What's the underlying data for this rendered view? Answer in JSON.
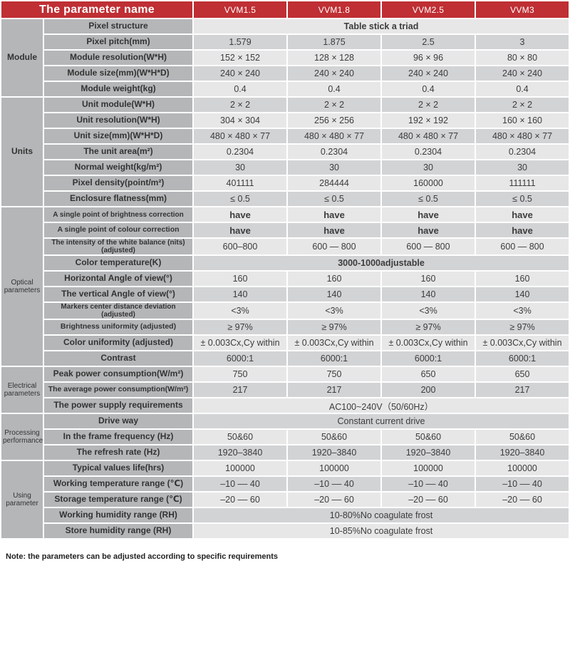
{
  "colors": {
    "header_red": "#bf2f34",
    "label_gray": "#b4b6b8",
    "row_light": "#e7e7e8",
    "row_mid": "#d2d3d5",
    "text_dark": "#333333"
  },
  "header": {
    "param_col_label": "The parameter name",
    "columns": [
      "VVM1.5",
      "VVM1.8",
      "VVM2.5",
      "VVM3"
    ]
  },
  "groups": [
    {
      "name": "Module",
      "rows": [
        {
          "label": "Pixel structure",
          "span": "Table stick a triad",
          "span_bold": true
        },
        {
          "label": "Pixel pitch(mm)",
          "values": [
            "1.579",
            "1.875",
            "2.5",
            "3"
          ]
        },
        {
          "label": "Module resolution(W*H)",
          "values": [
            "152 × 152",
            "128 × 128",
            "96 × 96",
            "80 × 80"
          ]
        },
        {
          "label": "Module size(mm)(W*H*D)",
          "values": [
            "240 × 240",
            "240 × 240",
            "240 × 240",
            "240 × 240"
          ]
        },
        {
          "label": "Module weight(kg)",
          "values": [
            "0.4",
            "0.4",
            "0.4",
            "0.4"
          ]
        }
      ]
    },
    {
      "name": "Units",
      "rows": [
        {
          "label": "Unit module(W*H)",
          "values": [
            "2 × 2",
            "2 × 2",
            "2 × 2",
            "2 × 2"
          ]
        },
        {
          "label": "Unit resolution(W*H)",
          "values": [
            "304 × 304",
            "256 × 256",
            "192 × 192",
            "160 × 160"
          ]
        },
        {
          "label": "Unit size(mm)(W*H*D)",
          "values": [
            "480 × 480 × 77",
            "480 × 480 × 77",
            "480 × 480 × 77",
            "480 × 480 × 77"
          ]
        },
        {
          "label": "The unit area(m²)",
          "values": [
            "0.2304",
            "0.2304",
            "0.2304",
            "0.2304"
          ]
        },
        {
          "label": "Normal weight(kg/m²)",
          "values": [
            "30",
            "30",
            "30",
            "30"
          ]
        },
        {
          "label": "Pixel density(point/m²)",
          "values": [
            "401111",
            "284444",
            "160000",
            "111111"
          ]
        },
        {
          "label": "Enclosure flatness(mm)",
          "values": [
            "≤ 0.5",
            "≤ 0.5",
            "≤ 0.5",
            "≤ 0.5"
          ]
        }
      ]
    },
    {
      "name": "Optical parameters",
      "rows": [
        {
          "label": "A single point of brightness correction",
          "values": [
            "have",
            "have",
            "have",
            "have"
          ]
        },
        {
          "label": "A single point of colour correction",
          "values": [
            "have",
            "have",
            "have",
            "have"
          ]
        },
        {
          "label": "The intensity of the white balance (nits) (adjusted)",
          "values": [
            "600–800",
            "600 — 800",
            "600 — 800",
            "600 — 800"
          ]
        },
        {
          "label": "Color temperature(K)",
          "span": "3000-1000adjustable",
          "span_bold": true
        },
        {
          "label": "Horizontal Angle of view(°)",
          "values": [
            "160",
            "160",
            "160",
            "160"
          ]
        },
        {
          "label": "The vertical Angle of view(°)",
          "values": [
            "140",
            "140",
            "140",
            "140"
          ]
        },
        {
          "label": "Markers center distance deviation (adjusted)",
          "values": [
            "<3%",
            "<3%",
            "<3%",
            "<3%"
          ]
        },
        {
          "label": "Brightness uniformity (adjusted)",
          "values": [
            "≥ 97%",
            "≥ 97%",
            "≥ 97%",
            "≥ 97%"
          ]
        },
        {
          "label": "Color uniformity (adjusted)",
          "values": [
            "± 0.003Cx,Cy  within",
            "± 0.003Cx,Cy within",
            "± 0.003Cx,Cy within",
            "± 0.003Cx,Cy within"
          ]
        },
        {
          "label": "Contrast",
          "values": [
            "6000:1",
            "6000:1",
            "6000:1",
            "6000:1"
          ]
        }
      ]
    },
    {
      "name": "Electrical parameters",
      "rows": [
        {
          "label": "Peak power consumption(W/m²)",
          "values": [
            "750",
            "750",
            "650",
            "650"
          ]
        },
        {
          "label": "The average power consumption(W/m²)",
          "values": [
            "217",
            "217",
            "200",
            "217"
          ]
        },
        {
          "label": "The power supply requirements",
          "span": "AC100~240V（50/60Hz）",
          "span_bold": false
        }
      ]
    },
    {
      "name": "Processing performance",
      "rows": [
        {
          "label": "Drive way",
          "span": "Constant current drive",
          "span_bold": false
        },
        {
          "label": "In the frame frequency (Hz)",
          "values": [
            "50&60",
            "50&60",
            "50&60",
            "50&60"
          ]
        },
        {
          "label": "The refresh rate (Hz)",
          "values": [
            "1920–3840",
            "1920–3840",
            "1920–3840",
            "1920–3840"
          ]
        }
      ]
    },
    {
      "name": "Using parameter",
      "rows": [
        {
          "label": "Typical values life(hrs)",
          "values": [
            "100000",
            "100000",
            "100000",
            "100000"
          ]
        },
        {
          "label": "Working temperature range (℃)",
          "values": [
            "–10 –– 40",
            "–10 –– 40",
            "–10 –– 40",
            "–10 –– 40"
          ]
        },
        {
          "label": "Storage temperature range (℃)",
          "values": [
            "–20 –– 60",
            "–20 –– 60",
            "–20 –– 60",
            "–20 –– 60"
          ]
        },
        {
          "label": "Working humidity range (RH)",
          "span": "10-80%No coagulate frost",
          "span_bold": false
        },
        {
          "label": "Store humidity range (RH)",
          "span": "10-85%No coagulate frost",
          "span_bold": false
        }
      ]
    }
  ],
  "note": "Note: the parameters can be adjusted according to specific requirements"
}
